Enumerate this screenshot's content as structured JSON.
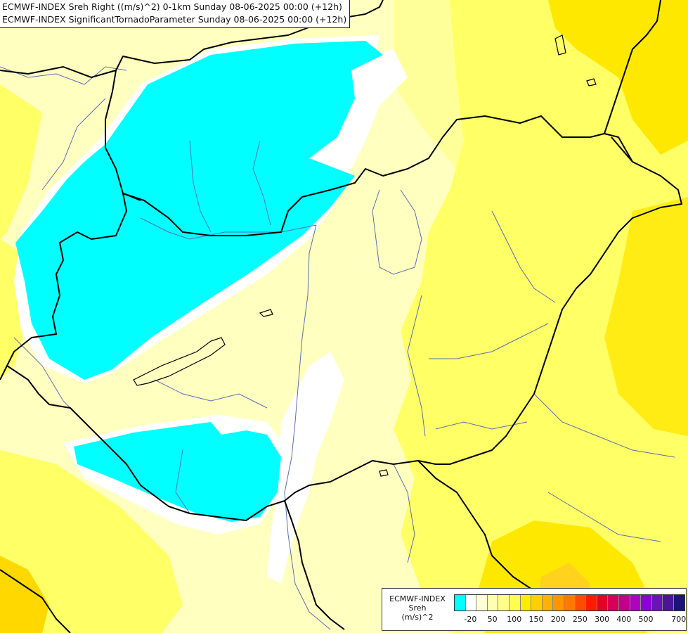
{
  "header": {
    "title_line1": "ECMWF-INDEX Sreh Right ((m/s)^2) 0-1km Sunday 08-06-2025 00:00 (+12h)",
    "title_line2": "ECMWF-INDEX SignificantTornadoParameter Sunday 08-06-2025 00:00 (+12h)"
  },
  "colors": {
    "background": "#ffffff",
    "pale_yellow": "#ffffc0",
    "light_yellow": "#ffff99",
    "yellow": "#ffff3c",
    "gold": "#ffe400",
    "negative_cyan": "#00ffff",
    "borders": "#000000",
    "rivers": "#5a6fb3"
  },
  "legend": {
    "name_line1": "ECMWF-INDEX",
    "name_line2": "Sreh",
    "name_line3": "(m/s)^2",
    "swatches": [
      "#00ffff",
      "#ffffff",
      "#ffffd8",
      "#ffffb0",
      "#ffff8a",
      "#ffff50",
      "#ffec00",
      "#ffd000",
      "#ffb200",
      "#ff9600",
      "#ff7800",
      "#ff4c00",
      "#ff1a00",
      "#e60026",
      "#d4005a",
      "#c4008a",
      "#b000c0",
      "#8a00d6",
      "#6a14b8",
      "#4a1696",
      "#1a1478"
    ],
    "ticks": [
      "-20",
      "50",
      "100",
      "150",
      "200",
      "250",
      "300",
      "400",
      "500",
      "700"
    ]
  }
}
